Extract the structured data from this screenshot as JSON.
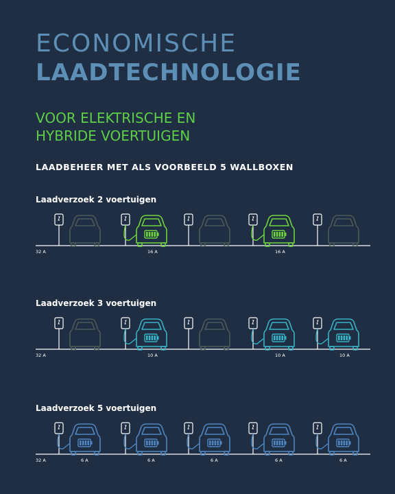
{
  "title": {
    "line1": "ECONOMISCHE",
    "line2": "LAADTECHNOLOGIE"
  },
  "subtitle": {
    "line1": "VOOR ELEKTRISCHE EN",
    "line2": "HYBRIDE VOERTUIGEN"
  },
  "heading": "LAADBEHEER MET ALS VOORBEELD 5 WALLBOXEN",
  "colors": {
    "background": "#1f2e42",
    "title": "#5d8fb6",
    "subtitle": "#5ecf46",
    "line": "#ffffff",
    "inactive_car": "#4a5b5a",
    "active_green": "#6fd63e",
    "active_teal": "#39b3c6",
    "active_blue": "#4f86c2"
  },
  "scenarios": [
    {
      "label": "Laadverzoek 2 voertuigen",
      "total_current": "32 A",
      "active_color": "active_green",
      "wallboxes": [
        {
          "active": false,
          "current": ""
        },
        {
          "active": true,
          "current": "16 A"
        },
        {
          "active": false,
          "current": ""
        },
        {
          "active": true,
          "current": "16 A"
        },
        {
          "active": false,
          "current": ""
        }
      ]
    },
    {
      "label": "Laadverzoek 3 voertuigen",
      "total_current": "32 A",
      "active_color": "active_teal",
      "wallboxes": [
        {
          "active": false,
          "current": ""
        },
        {
          "active": true,
          "current": "10 A"
        },
        {
          "active": false,
          "current": ""
        },
        {
          "active": true,
          "current": "10 A"
        },
        {
          "active": true,
          "current": "10 A"
        }
      ]
    },
    {
      "label": "Laadverzoek 5 voertuigen",
      "total_current": "32 A",
      "active_color": "active_blue",
      "wallboxes": [
        {
          "active": true,
          "current": "6 A"
        },
        {
          "active": true,
          "current": "6 A"
        },
        {
          "active": true,
          "current": "6 A"
        },
        {
          "active": true,
          "current": "6 A"
        },
        {
          "active": true,
          "current": "6 A"
        }
      ]
    }
  ]
}
